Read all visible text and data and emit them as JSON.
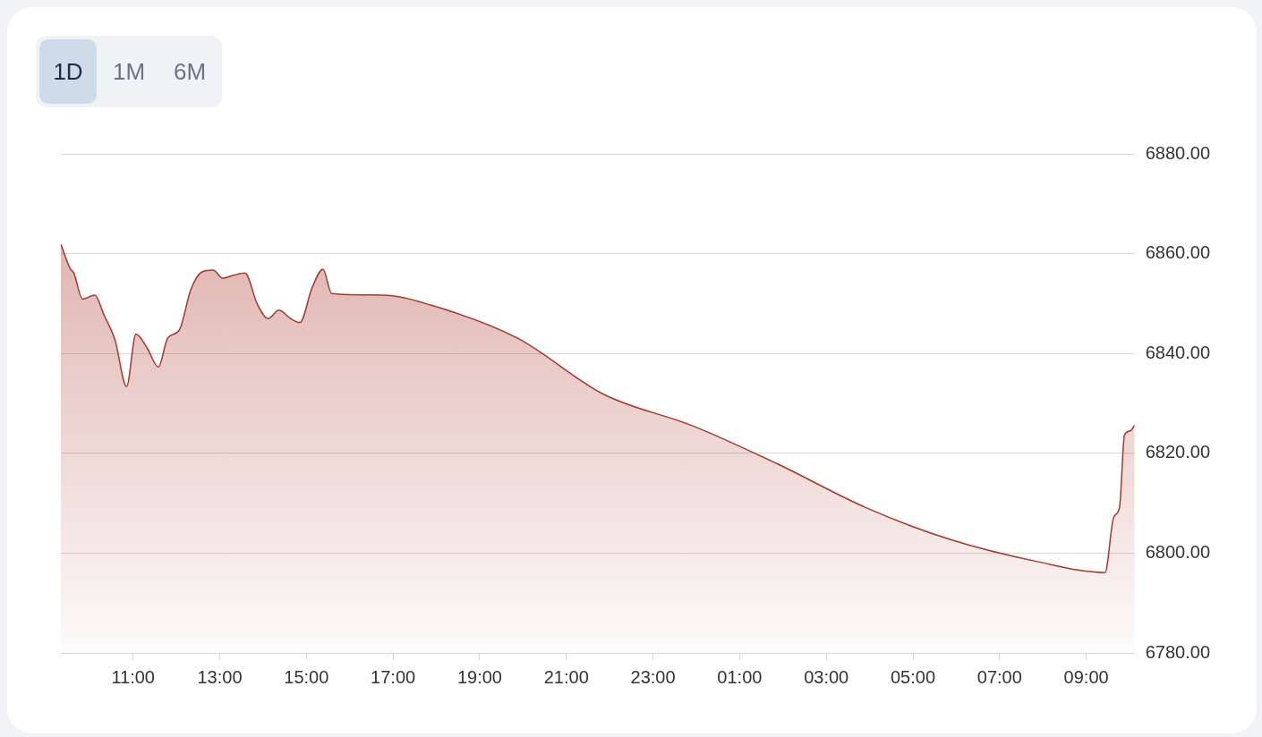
{
  "chart_data": {
    "type": "area",
    "annotations": [
      "1D",
      "1M",
      "6M"
    ],
    "x": [
      "--01-01T09:20",
      "--01-01T09:33",
      "--01-01T09:38",
      "--01-01T09:50",
      "--01-01T10:07",
      "--01-01T10:20",
      "--01-01T10:35",
      "--01-01T10:51",
      "--01-01T11:04",
      "--01-01T11:19",
      "--01-01T11:35",
      "--01-01T11:48",
      "--01-01T12:04",
      "--01-01T12:20",
      "--01-01T12:35",
      "--01-01T12:51",
      "--01-01T13:04",
      "--01-01T13:20",
      "--01-01T13:35",
      "--01-01T13:52",
      "--01-01T14:07",
      "--01-01T14:22",
      "--01-01T14:38",
      "--01-01T14:51",
      "--01-01T15:08",
      "--01-01T15:23",
      "--01-01T15:35",
      "--01-01T16:45",
      "--01-01T17:52",
      "--01-01T19:52",
      "--01-01T21:52",
      "--01-01T23:55",
      "--01-02T01:52",
      "--01-02T03:55",
      "--01-02T05:52",
      "--01-02T07:52",
      "--01-02T09:26",
      "--01-02T09:38",
      "--01-02T09:46",
      "--01-02T09:53",
      "--01-02T10:01",
      "--01-02T10:07"
    ],
    "series": [
      {
        "color": "#a9362b",
        "values": [
          6861.9,
          6857,
          6856.1,
          6850.9,
          6851.7,
          6847.6,
          6842.7,
          6833.4,
          6843.9,
          6841.2,
          6837.3,
          6843.1,
          6844.7,
          6852.8,
          6856.3,
          6856.7,
          6855.1,
          6855.7,
          6856.1,
          6849.9,
          6847,
          6848.7,
          6847,
          6846.2,
          6853.2,
          6856.9,
          6852,
          6851.7,
          6849.7,
          6843.1,
          6831.8,
          6825.5,
          6817.9,
          6809.1,
          6802.7,
          6798.3,
          6796.1,
          6807.2,
          6809.1,
          6823.7,
          6824.5,
          6825.6
        ]
      }
    ],
    "xlim": [
      "--01-01T09:20",
      "--01-02T10:07"
    ],
    "xticks": [
      {
        "value": "--01-01T11:00",
        "label": "11:00"
      },
      {
        "value": "--01-01T13:00",
        "label": "13:00"
      },
      {
        "value": "--01-01T15:00",
        "label": "15:00"
      },
      {
        "value": "--01-01T17:00",
        "label": "17:00"
      },
      {
        "value": "--01-01T19:00",
        "label": "19:00"
      },
      {
        "value": "--01-01T21:00",
        "label": "21:00"
      },
      {
        "value": "--01-01T23:00",
        "label": "23:00"
      },
      {
        "value": "--01-02T01:00",
        "label": "01:00"
      },
      {
        "value": "--01-02T03:00",
        "label": "03:00"
      },
      {
        "value": "--01-02T05:00",
        "label": "05:00"
      },
      {
        "value": "--01-02T07:00",
        "label": "07:00"
      },
      {
        "value": "--01-02T09:00",
        "label": "09:00"
      }
    ],
    "ylim": [
      6780,
      6880
    ],
    "yticks": [
      {
        "value": 6780,
        "label": "6780.00"
      },
      {
        "value": 6800,
        "label": "6800.00"
      },
      {
        "value": 6820,
        "label": "6820.00"
      },
      {
        "value": 6840,
        "label": "6840.00"
      },
      {
        "value": 6860,
        "label": "6860.00"
      },
      {
        "value": 6880,
        "label": "6880.00"
      }
    ],
    "grid": "y",
    "legend": false,
    "marker": "none",
    "line_style": "solid"
  }
}
